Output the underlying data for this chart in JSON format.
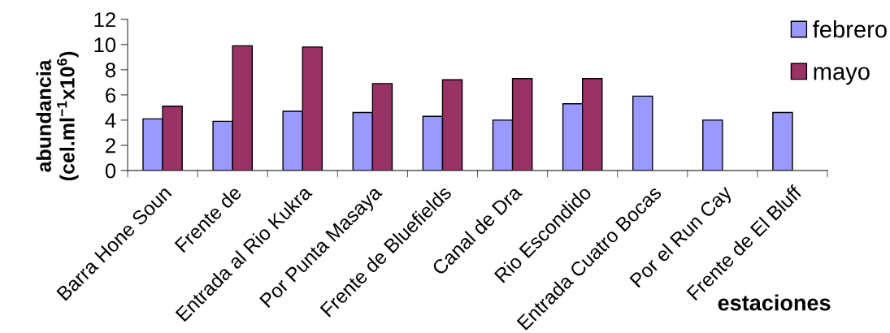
{
  "chart_data": {
    "type": "bar",
    "categories": [
      "Barra Hone Soun",
      "Frente de",
      "Entrada al Rio Kukra",
      "Por Punta Masaya",
      "Frente de Bluefields",
      "Canal de Dra",
      "Rio Escondido",
      "Entrada Cuatro Bocas",
      "Por el Run Cay",
      "Frente de El Bluff"
    ],
    "series": [
      {
        "name": "febrero",
        "color": "#9999ff",
        "values": [
          4.1,
          3.9,
          4.7,
          4.6,
          4.3,
          4.0,
          5.3,
          5.9,
          4.0,
          4.6
        ]
      },
      {
        "name": "mayo",
        "color": "#993366",
        "values": [
          5.1,
          9.9,
          9.8,
          6.9,
          7.2,
          7.3,
          7.3,
          null,
          null,
          null
        ]
      }
    ],
    "xlabel": "estaciones",
    "ylabel": "abundancia\n(cel.ml$^{−1}$x10$^{6}$)",
    "ylim": [
      0,
      12
    ],
    "yticks": [
      0,
      2,
      4,
      6,
      8,
      10,
      12
    ],
    "grid": false,
    "legend": "top right"
  }
}
